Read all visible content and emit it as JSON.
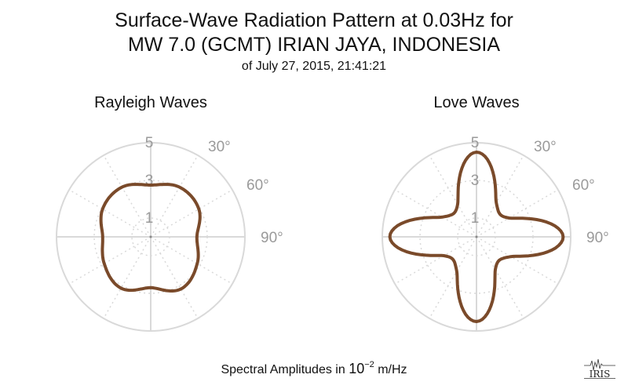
{
  "title_line1": "Surface-Wave Radiation Pattern at 0.03Hz for",
  "title_line2": "MW 7.0 (GCMT) IRIAN JAYA, INDONESIA",
  "subtitle": "of July 27, 2015, 21:41:21",
  "xlabel": {
    "prefix": "Spectral Amplitudes in ",
    "base": "10",
    "exponent": "−2",
    "suffix": " m/Hz"
  },
  "logo_text": "IRIS",
  "colors": {
    "curve": "#7a4a2a",
    "grid": "#d9d9d9",
    "tick_text": "#9a9a9a"
  },
  "chart_data": [
    {
      "type": "polar-line",
      "title": "Rayleigh Waves",
      "radial_ticks": [
        "1",
        "3",
        "5"
      ],
      "radial_values": [
        1,
        3,
        5
      ],
      "r_max": 5,
      "angle_ticks": [
        "30°",
        "60°",
        "90°"
      ],
      "angle_values": [
        30,
        60,
        90
      ],
      "pattern": {
        "azimuth_deg": [
          0,
          30,
          60,
          90,
          120,
          150,
          180,
          210,
          240,
          270,
          300,
          330
        ],
        "amplitude": [
          2.75,
          3.05,
          2.95,
          2.45,
          2.85,
          3.2,
          2.7,
          3.15,
          2.85,
          2.55,
          2.95,
          3.05
        ]
      },
      "grid": true
    },
    {
      "type": "polar-line",
      "title": "Love Waves",
      "radial_ticks": [
        "1",
        "3",
        "5"
      ],
      "radial_values": [
        1,
        3,
        5
      ],
      "r_max": 5,
      "angle_ticks": [
        "30°",
        "60°",
        "90°"
      ],
      "angle_values": [
        30,
        60,
        90
      ],
      "pattern": {
        "azimuth_deg": [
          0,
          30,
          60,
          90,
          120,
          150,
          180,
          210,
          240,
          270,
          300,
          330
        ],
        "amplitude": [
          4.5,
          2.1,
          2.0,
          4.6,
          2.1,
          2.0,
          4.5,
          2.1,
          2.0,
          4.6,
          2.1,
          2.0
        ]
      },
      "grid": true
    }
  ]
}
